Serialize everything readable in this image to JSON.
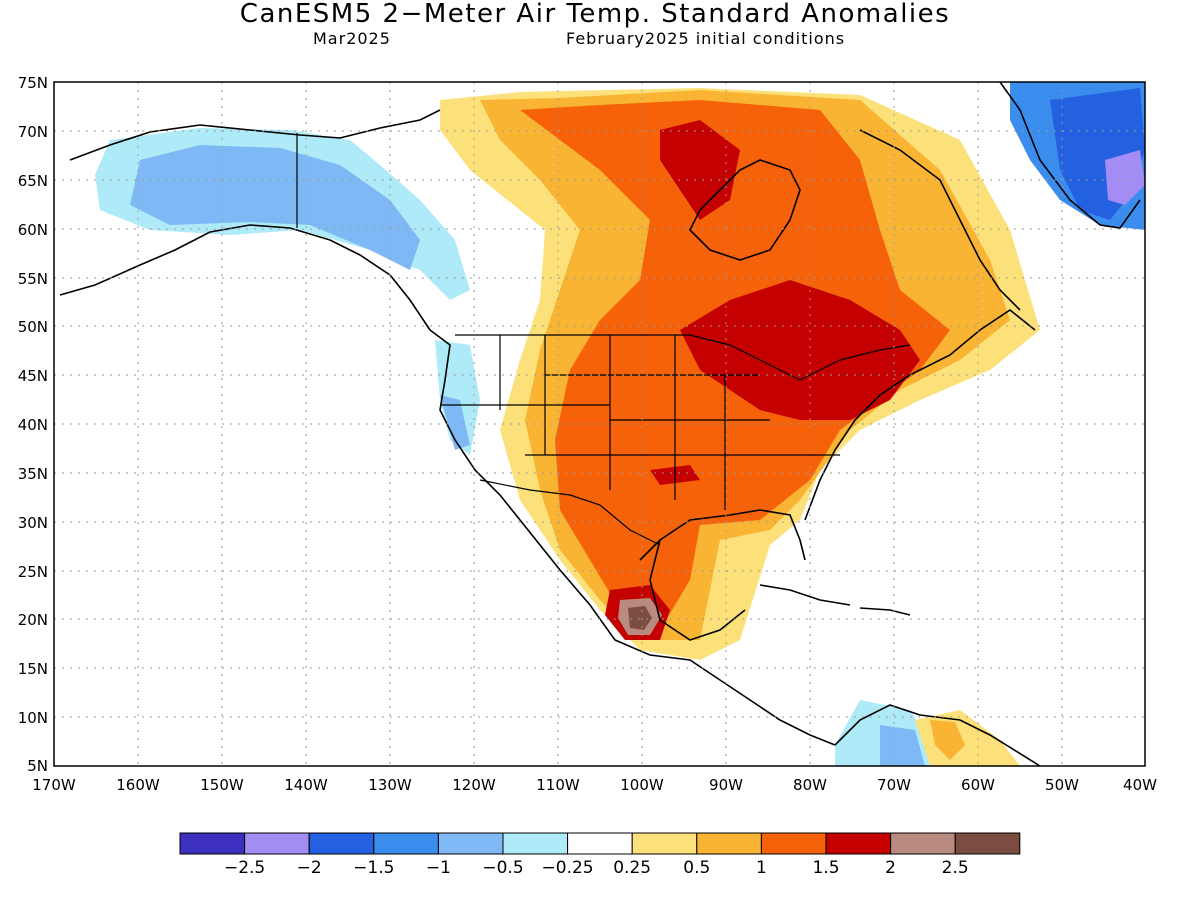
{
  "title": "CanESM5 2−Meter Air Temp. Standard Anomalies",
  "subtitle_left": "Mar2025",
  "subtitle_right": "February2025 initial conditions",
  "lat_labels": [
    "75N",
    "70N",
    "65N",
    "60N",
    "55N",
    "50N",
    "45N",
    "40N",
    "35N",
    "30N",
    "25N",
    "20N",
    "15N",
    "10N",
    "5N"
  ],
  "lon_labels": [
    "170W",
    "160W",
    "150W",
    "140W",
    "130W",
    "120W",
    "110W",
    "100W",
    "90W",
    "80W",
    "70W",
    "60W",
    "50W",
    "40W"
  ],
  "colorbar": {
    "colors": [
      "#3d2fbf",
      "#a48cf5",
      "#2461e0",
      "#3b8ded",
      "#7eb8f5",
      "#aeeaf7",
      "#ffffff",
      "#fce17a",
      "#f8b432",
      "#f5620a",
      "#c40000",
      "#b98a80",
      "#7a4d40"
    ],
    "labels": [
      "−2.5",
      "−2",
      "−1.5",
      "−1",
      "−0.5",
      "−0.25",
      "0.25",
      "0.5",
      "1",
      "1.5",
      "2",
      "2.5"
    ]
  }
}
